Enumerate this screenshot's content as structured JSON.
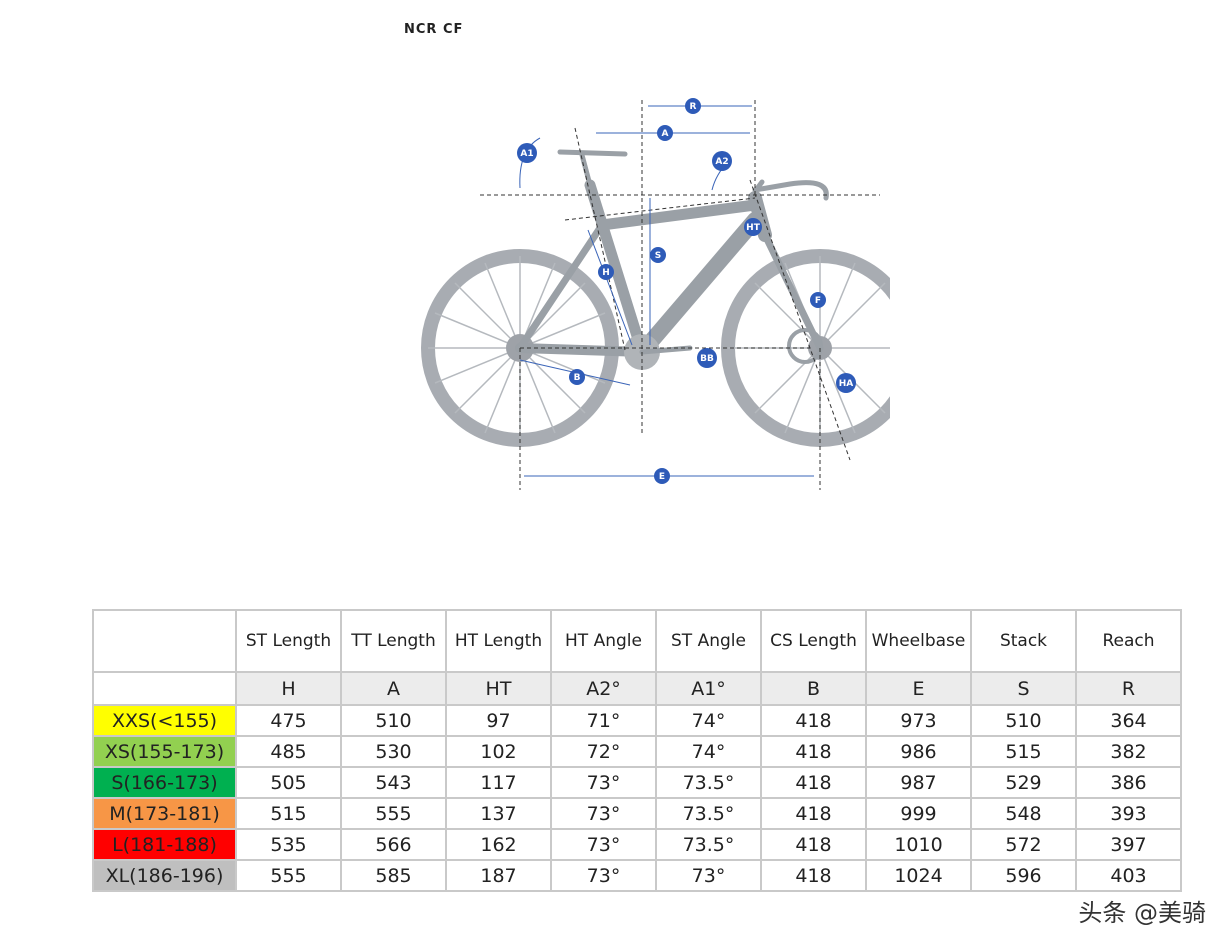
{
  "header": {
    "title": "NCR CF"
  },
  "diagram": {
    "labels": [
      "R",
      "A",
      "A1",
      "A2",
      "S",
      "HT",
      "H",
      "F",
      "BB",
      "B",
      "HA",
      "E"
    ]
  },
  "table": {
    "headers": [
      "ST Length",
      "TT Length",
      "HT Length",
      "HT Angle",
      "ST Angle",
      "CS Length",
      "Wheelbase",
      "Stack",
      "Reach"
    ],
    "abbreviations": [
      "H",
      "A",
      "HT",
      "A2°",
      "A1°",
      "B",
      "E",
      "S",
      "R"
    ],
    "rows": [
      {
        "size": "XXS(<155)",
        "color": "#ffff00",
        "values": [
          "475",
          "510",
          "97",
          "71°",
          "74°",
          "418",
          "973",
          "510",
          "364"
        ]
      },
      {
        "size": "XS(155-173)",
        "color": "#92d050",
        "values": [
          "485",
          "530",
          "102",
          "72°",
          "74°",
          "418",
          "986",
          "515",
          "382"
        ]
      },
      {
        "size": "S(166-173)",
        "color": "#00b050",
        "values": [
          "505",
          "543",
          "117",
          "73°",
          "73.5°",
          "418",
          "987",
          "529",
          "386"
        ]
      },
      {
        "size": "M(173-181)",
        "color": "#f79646",
        "values": [
          "515",
          "555",
          "137",
          "73°",
          "73.5°",
          "418",
          "999",
          "548",
          "393"
        ]
      },
      {
        "size": "L(181-188)",
        "color": "#ff0000",
        "values": [
          "535",
          "566",
          "162",
          "73°",
          "73.5°",
          "418",
          "1010",
          "572",
          "397"
        ]
      },
      {
        "size": "XL(186-196)",
        "color": "#bfbfbf",
        "values": [
          "555",
          "585",
          "187",
          "73°",
          "73°",
          "418",
          "1024",
          "596",
          "403"
        ]
      }
    ]
  },
  "watermark": {
    "text": "头条 @美骑"
  }
}
